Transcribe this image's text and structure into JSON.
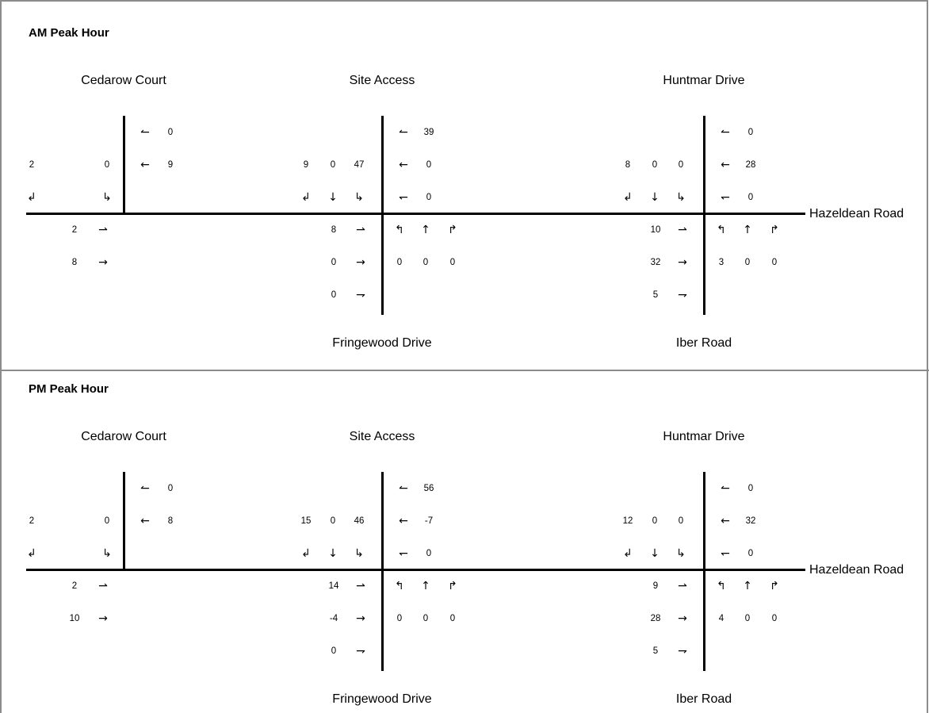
{
  "panels": [
    {
      "title": "AM Peak Hour",
      "streets": {
        "west_north": "Cedarow Court",
        "mid_north": "Site Access",
        "east_north": "Huntmar Drive",
        "main_road": "Hazeldean Road",
        "mid_south": "Fringewood Drive",
        "east_south": "Iber Road"
      },
      "cedarow": {
        "sb_right": "2",
        "sb_left": "0",
        "wb_uturn": "0",
        "wb_thru": "9",
        "eb_left": "2",
        "eb_thru": "8"
      },
      "site": {
        "sb_right": "9",
        "sb_thru": "0",
        "sb_left": "47",
        "wb_uturn": "39",
        "wb_thru": "0",
        "wb_right": "0",
        "eb_left": "8",
        "eb_thru": "0",
        "eb_right": "0",
        "nb_left": "0",
        "nb_thru": "0",
        "nb_right": "0"
      },
      "huntmar": {
        "sb_right": "8",
        "sb_thru": "0",
        "sb_left": "0",
        "wb_uturn": "0",
        "wb_thru": "28",
        "wb_right": "0",
        "eb_left": "10",
        "eb_thru": "32",
        "eb_right": "5",
        "nb_left": "3",
        "nb_thru": "0",
        "nb_right": "0"
      }
    },
    {
      "title": "PM Peak Hour",
      "streets": {
        "west_north": "Cedarow Court",
        "mid_north": "Site Access",
        "east_north": "Huntmar Drive",
        "main_road": "Hazeldean Road",
        "mid_south": "Fringewood Drive",
        "east_south": "Iber Road"
      },
      "cedarow": {
        "sb_right": "2",
        "sb_left": "0",
        "wb_uturn": "0",
        "wb_thru": "8",
        "eb_left": "2",
        "eb_thru": "10"
      },
      "site": {
        "sb_right": "15",
        "sb_thru": "0",
        "sb_left": "46",
        "wb_uturn": "56",
        "wb_thru": "-7",
        "wb_right": "0",
        "eb_left": "14",
        "eb_thru": "-4",
        "eb_right": "0",
        "nb_left": "0",
        "nb_thru": "0",
        "nb_right": "0"
      },
      "huntmar": {
        "sb_right": "12",
        "sb_thru": "0",
        "sb_left": "0",
        "wb_uturn": "0",
        "wb_thru": "32",
        "wb_right": "0",
        "eb_left": "9",
        "eb_thru": "28",
        "eb_right": "5",
        "nb_left": "4",
        "nb_thru": "0",
        "nb_right": "0"
      }
    }
  ],
  "icons": {
    "sb_right": "↲",
    "sb_thru": "↓",
    "sb_left": "↳",
    "wb_uturn": "↼",
    "wb_thru": "←",
    "wb_right": "↽",
    "eb_left": "⇀",
    "eb_thru": "→",
    "eb_right": "⇁",
    "nb_left": "↰",
    "nb_thru": "↑",
    "nb_right": "↱"
  }
}
